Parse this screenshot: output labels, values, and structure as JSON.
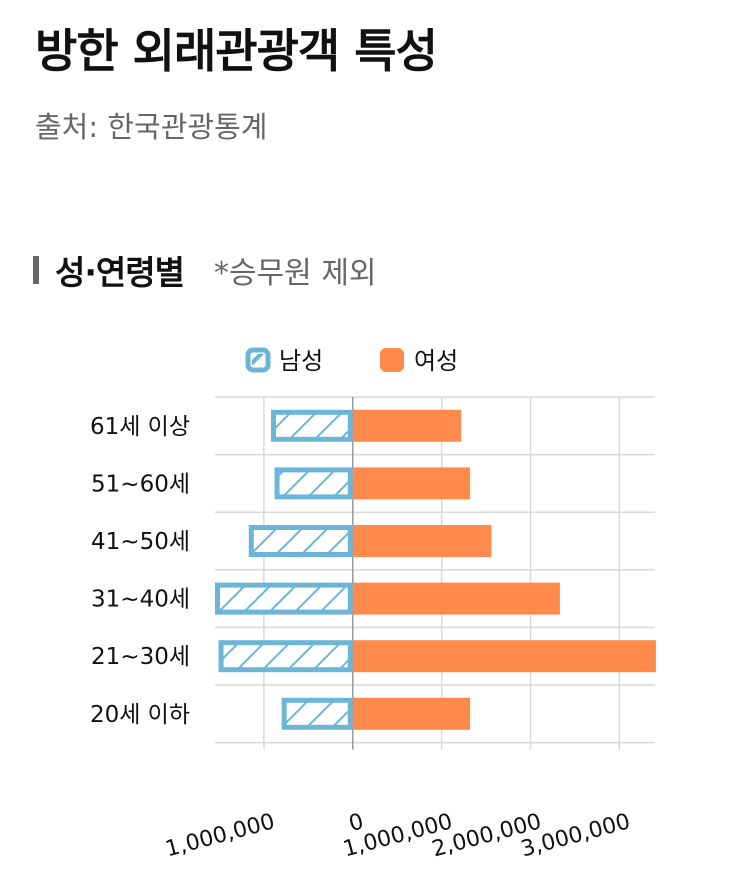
{
  "header": {
    "title": "방한 외래관광객 특성",
    "source": "출처: 한국관광통계"
  },
  "section": {
    "title": "성·연령별",
    "note": "*승무원 제외"
  },
  "colors": {
    "male": "#6BB6D6",
    "female": "#FF8A4C",
    "grid": "#D9D9D9",
    "zero_line": "#999999"
  },
  "chart_data": {
    "type": "bar",
    "orientation": "horizontal",
    "layout": "diverging",
    "categories": [
      "61세 이상",
      "51~60세",
      "41~50세",
      "31~40세",
      "21~30세",
      "20세 이하"
    ],
    "series": [
      {
        "name": "남성",
        "values": [
          920000,
          880000,
          1170000,
          1550000,
          1510000,
          800000
        ],
        "direction": "left",
        "pattern": "hatched"
      },
      {
        "name": "여성",
        "values": [
          1220000,
          1320000,
          1560000,
          2330000,
          3410000,
          1320000
        ],
        "direction": "right",
        "pattern": "solid"
      }
    ],
    "xlim": [
      -1550000,
      3400000
    ],
    "x_ticks": [
      -1000000,
      0,
      1000000,
      2000000,
      3000000
    ],
    "x_tick_labels": [
      "1,000,000",
      "0",
      "1,000,000",
      "2,000,000",
      "3,000,000"
    ],
    "legend_position": "top",
    "grid": true
  }
}
